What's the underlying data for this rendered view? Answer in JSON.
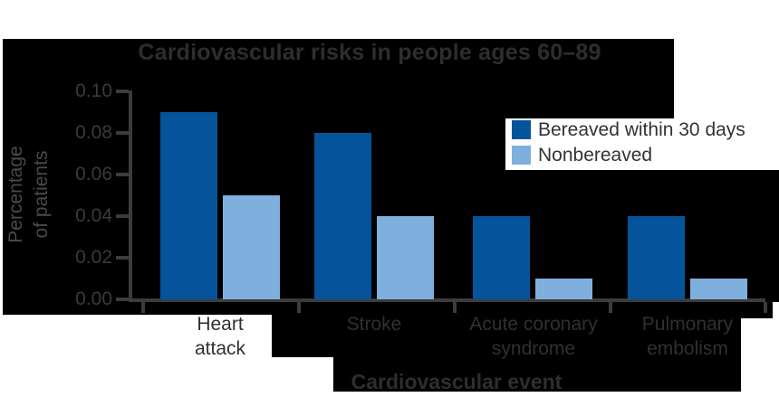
{
  "figure": {
    "title": "Cardiovascular risks in people ages 60–89"
  },
  "chart_data": {
    "type": "bar",
    "title": "Cardiovascular risks in people ages 60–89",
    "xlabel": "Cardiovascular event",
    "ylabel": "Percentage of patients",
    "ylabel_lines": [
      "Percentage",
      "of patients"
    ],
    "categories": [
      "Heart attack",
      "Stroke",
      "Acute coronary syndrome",
      "Pulmonary embolism"
    ],
    "category_label_lines": [
      [
        "Heart",
        "attack"
      ],
      [
        "Stroke"
      ],
      [
        "Acute coronary",
        "syndrome"
      ],
      [
        "Pulmonary",
        "embolism"
      ]
    ],
    "series": [
      {
        "name": "Bereaved within 30 days",
        "color": "#05549B",
        "values": [
          0.09,
          0.08,
          0.04,
          0.04
        ]
      },
      {
        "name": "Nonbereaved",
        "color": "#7FB0DD",
        "values": [
          0.05,
          0.04,
          0.01,
          0.01
        ]
      }
    ],
    "ylim": [
      0,
      0.1
    ],
    "y_ticks": [
      "0.00",
      "0.02",
      "0.04",
      "0.06",
      "0.08",
      "0.10"
    ],
    "grid": false,
    "legend_position": "upper right"
  },
  "colors": {
    "bar_dark_blue": "#05549B",
    "bar_light_blue": "#7FB0DD",
    "axis": "#3c3c3c",
    "title_text": "#2d2d2d",
    "tick_label_text": "#3a3a3a",
    "background_artifact": "#000000",
    "page_background": "#ffffff"
  }
}
